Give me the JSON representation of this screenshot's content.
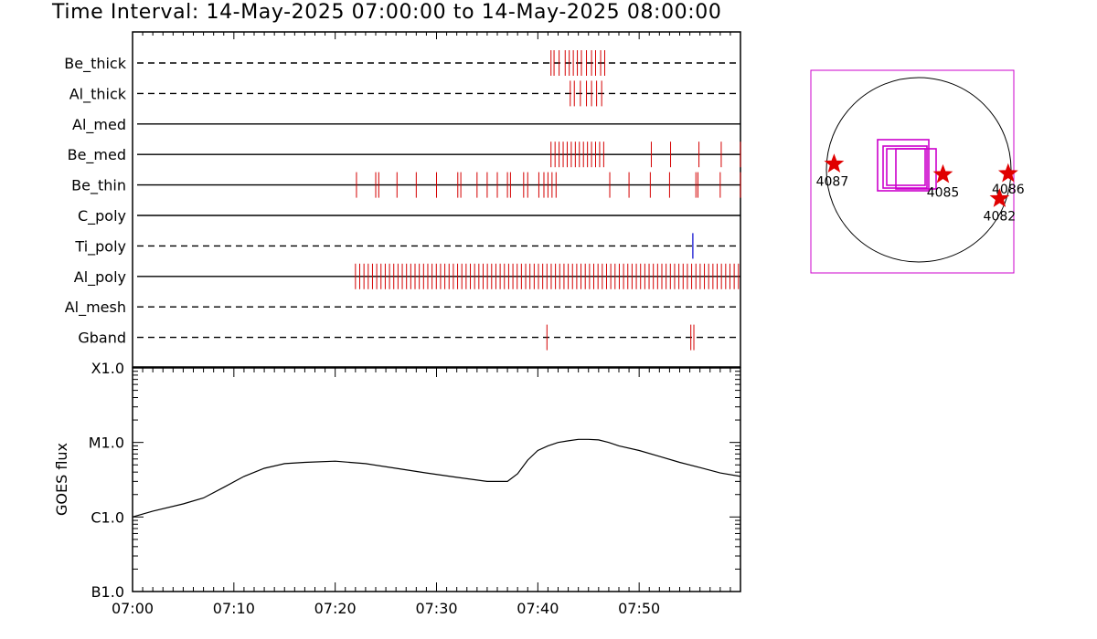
{
  "title": "Time Interval: 14-May-2025 07:00:00 to 14-May-2025 08:00:00",
  "chart_data": [
    {
      "type": "event-timeline",
      "x_range": [
        "07:00",
        "08:00"
      ],
      "channels": [
        {
          "name": "Be_thick",
          "style": "dashed",
          "events": [
            41.3,
            41.6,
            42.1,
            42.7,
            43.1,
            43.5,
            43.9,
            44.3,
            44.8,
            45.3,
            45.7,
            46.2,
            46.6
          ]
        },
        {
          "name": "Al_thick",
          "style": "dashed",
          "events": [
            43.2,
            43.6,
            44.2,
            44.8,
            45.3,
            45.8,
            46.3
          ]
        },
        {
          "name": "Al_med",
          "style": "solid",
          "events": []
        },
        {
          "name": "Be_med",
          "style": "solid",
          "events": [
            41.3,
            41.7,
            42.1,
            42.5,
            42.9,
            43.3,
            43.7,
            44.1,
            44.5,
            44.9,
            45.3,
            45.7,
            46.1,
            46.5,
            51.2,
            53.1,
            55.9,
            58.1,
            60.0
          ]
        },
        {
          "name": "Be_thin",
          "style": "solid",
          "events": [
            22.1,
            24.0,
            24.3,
            26.1,
            28.0,
            30.0,
            32.1,
            32.4,
            34.0,
            35.0,
            36.0,
            37.0,
            37.3,
            38.6,
            39.0,
            40.1,
            40.6,
            41.0,
            41.4,
            41.8,
            47.1,
            49.0,
            51.1,
            53.0,
            55.6,
            55.8,
            58.0,
            60.0
          ]
        },
        {
          "name": "C_poly",
          "style": "solid",
          "events": []
        },
        {
          "name": "Ti_poly",
          "style": "dashed",
          "events": [],
          "blue_events": [
            55.3
          ]
        },
        {
          "name": "Al_poly",
          "style": "solid",
          "events": []
        },
        {
          "name": "Al_mesh",
          "style": "dashed",
          "events": []
        },
        {
          "name": "Gband",
          "style": "dashed",
          "events": [
            40.9,
            55.1,
            55.4
          ]
        }
      ],
      "al_poly_dense_range": [
        22.0,
        60.0
      ]
    },
    {
      "type": "line",
      "ylabel": "GOES flux",
      "y_scale": "log",
      "y_ticks": [
        "X1.0",
        "M1.0",
        "C1.0",
        "B1.0"
      ],
      "y_range": [
        "B1.0",
        "X1.0"
      ],
      "x_ticks": [
        "07:00",
        "07:10",
        "07:20",
        "07:30",
        "07:40",
        "07:50"
      ],
      "x_range": [
        "07:00",
        "08:00"
      ],
      "series": [
        {
          "x": [
            0,
            2,
            5,
            7,
            9,
            11,
            13,
            15,
            17,
            20,
            23,
            26,
            29,
            32,
            35,
            37,
            38,
            39,
            40,
            41,
            42,
            43,
            44,
            45,
            46,
            47,
            48,
            50,
            52,
            54,
            56,
            58,
            60
          ],
          "y": [
            "C1.0",
            "C1.2",
            "C1.5",
            "C1.8",
            "C2.5",
            "C3.5",
            "C4.5",
            "C5.2",
            "C5.4",
            "C5.6",
            "C5.2",
            "C4.5",
            "C3.9",
            "C3.4",
            "C3.0",
            "C3.0",
            "C3.8",
            "C5.8",
            "C7.8",
            "C9.0",
            "M1.0",
            "M1.05",
            "M1.1",
            "M1.1",
            "M1.08",
            "M1.0",
            "C9.0",
            "C7.8",
            "C6.5",
            "C5.4",
            "C4.6",
            "C3.9",
            "C3.5"
          ]
        }
      ]
    },
    {
      "type": "scatter",
      "markers": [
        {
          "label": "4087",
          "x": -880,
          "y": 60
        },
        {
          "label": "4085",
          "x": 252,
          "y": -50
        },
        {
          "label": "4086",
          "x": 930,
          "y": -40
        },
        {
          "label": "4082",
          "x": 840,
          "y": -300
        }
      ]
    }
  ],
  "colors": {
    "events": "#d40000",
    "blue_event": "#0000cc",
    "boxes": "#cc00cc",
    "stars": "#e00000",
    "frame": "#cc00cc"
  }
}
